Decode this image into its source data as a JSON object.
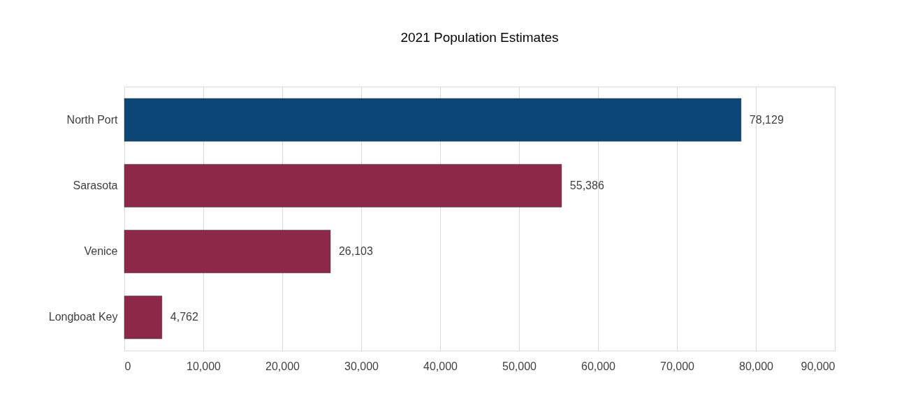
{
  "chart_data": {
    "type": "bar",
    "orientation": "horizontal",
    "title": "2021 Population Estimates",
    "categories": [
      "North Port",
      "Sarasota",
      "Venice",
      "Longboat Key"
    ],
    "values": [
      78129,
      55386,
      26103,
      4762
    ],
    "colors": [
      "#0b4676",
      "#8e2848",
      "#8e2848",
      "#8e2848"
    ],
    "xlim": [
      0,
      90000
    ],
    "xticks": [
      {
        "value": 0,
        "label": "0"
      },
      {
        "value": 10000,
        "label": "10,000"
      },
      {
        "value": 20000,
        "label": "20,000"
      },
      {
        "value": 30000,
        "label": "30,000"
      },
      {
        "value": 40000,
        "label": "40,000"
      },
      {
        "value": 50000,
        "label": "50,000"
      },
      {
        "value": 60000,
        "label": "60,000"
      },
      {
        "value": 70000,
        "label": "70,000"
      },
      {
        "value": 80000,
        "label": "80,000"
      },
      {
        "value": 90000,
        "label": "90,000"
      }
    ],
    "value_labels": [
      "78,129",
      "55,386",
      "26,103",
      "4,762"
    ],
    "grid": "x"
  }
}
